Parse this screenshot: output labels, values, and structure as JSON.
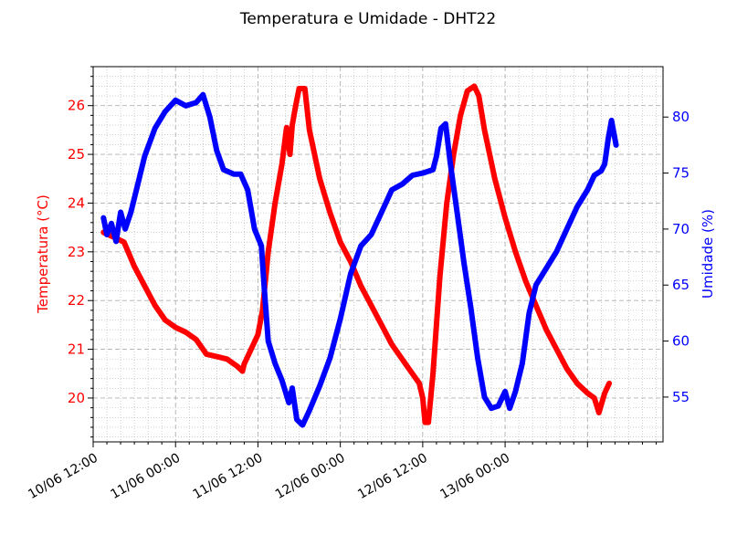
{
  "chart_data": {
    "type": "line",
    "title": "Temperatura e Umidade - DHT22",
    "xlabel": "",
    "x_tick_labels": [
      "10/06 12:00",
      "11/06 00:00",
      "11/06 12:00",
      "12/06 00:00",
      "12/06 12:00",
      "13/06 00:00"
    ],
    "x_range": [
      "2018-06-10 12:00",
      "2018-06-13 23:00"
    ],
    "grid": true,
    "y_left": {
      "label": "Temperatura (°C)",
      "color": "#ff0000",
      "ylim": [
        19.1,
        26.8
      ],
      "ticks": [
        "20",
        "21",
        "22",
        "23",
        "24",
        "25",
        "26"
      ]
    },
    "y_right": {
      "label": "Umidade (%)",
      "color": "#0000ff",
      "ylim": [
        51,
        84.5
      ],
      "ticks": [
        "55",
        "60",
        "65",
        "70",
        "75",
        "80"
      ]
    },
    "series": [
      {
        "axis": "left",
        "color": "#ff0000",
        "points": [
          [
            "2018-06-10 13:30",
            23.4
          ],
          [
            "2018-06-10 15:00",
            23.3
          ],
          [
            "2018-06-10 16:30",
            23.2
          ],
          [
            "2018-06-10 18:00",
            22.7
          ],
          [
            "2018-06-10 19:30",
            22.3
          ],
          [
            "2018-06-10 21:00",
            21.9
          ],
          [
            "2018-06-10 22:30",
            21.6
          ],
          [
            "2018-06-11 00:00",
            21.45
          ],
          [
            "2018-06-11 01:30",
            21.35
          ],
          [
            "2018-06-11 03:00",
            21.2
          ],
          [
            "2018-06-11 04:30",
            20.9
          ],
          [
            "2018-06-11 06:00",
            20.85
          ],
          [
            "2018-06-11 07:30",
            20.8
          ],
          [
            "2018-06-11 09:00",
            20.65
          ],
          [
            "2018-06-11 09:45",
            20.55
          ],
          [
            "2018-06-11 10:00",
            20.7
          ],
          [
            "2018-06-11 11:00",
            21.0
          ],
          [
            "2018-06-11 12:00",
            21.3
          ],
          [
            "2018-06-11 12:40",
            21.8
          ],
          [
            "2018-06-11 13:30",
            23.0
          ],
          [
            "2018-06-11 14:30",
            24.0
          ],
          [
            "2018-06-11 15:30",
            24.8
          ],
          [
            "2018-06-11 16:10",
            25.55
          ],
          [
            "2018-06-11 16:40",
            25.0
          ],
          [
            "2018-06-11 17:00",
            25.6
          ],
          [
            "2018-06-11 17:30",
            26.0
          ],
          [
            "2018-06-11 18:00",
            26.35
          ],
          [
            "2018-06-11 18:50",
            26.35
          ],
          [
            "2018-06-11 19:30",
            25.5
          ],
          [
            "2018-06-11 21:00",
            24.5
          ],
          [
            "2018-06-11 22:30",
            23.8
          ],
          [
            "2018-06-12 00:00",
            23.2
          ],
          [
            "2018-06-12 01:30",
            22.8
          ],
          [
            "2018-06-12 03:00",
            22.3
          ],
          [
            "2018-06-12 04:30",
            21.9
          ],
          [
            "2018-06-12 06:00",
            21.5
          ],
          [
            "2018-06-12 07:30",
            21.1
          ],
          [
            "2018-06-12 09:00",
            20.8
          ],
          [
            "2018-06-12 10:30",
            20.5
          ],
          [
            "2018-06-12 11:30",
            20.3
          ],
          [
            "2018-06-12 12:00",
            20.0
          ],
          [
            "2018-06-12 12:20",
            19.5
          ],
          [
            "2018-06-12 12:50",
            19.5
          ],
          [
            "2018-06-12 13:30",
            20.5
          ],
          [
            "2018-06-12 14:30",
            22.5
          ],
          [
            "2018-06-12 15:30",
            24.0
          ],
          [
            "2018-06-12 16:30",
            25.0
          ],
          [
            "2018-06-12 17:30",
            25.8
          ],
          [
            "2018-06-12 18:30",
            26.3
          ],
          [
            "2018-06-12 19:30",
            26.4
          ],
          [
            "2018-06-12 20:10",
            26.2
          ],
          [
            "2018-06-12 21:00",
            25.5
          ],
          [
            "2018-06-12 22:30",
            24.5
          ],
          [
            "2018-06-13 00:00",
            23.7
          ],
          [
            "2018-06-13 01:30",
            23.0
          ],
          [
            "2018-06-13 03:00",
            22.4
          ],
          [
            "2018-06-13 04:30",
            21.9
          ],
          [
            "2018-06-13 06:00",
            21.4
          ],
          [
            "2018-06-13 07:30",
            21.0
          ],
          [
            "2018-06-13 09:00",
            20.6
          ],
          [
            "2018-06-13 10:30",
            20.3
          ],
          [
            "2018-06-13 12:00",
            20.1
          ],
          [
            "2018-06-13 13:00",
            20.0
          ],
          [
            "2018-06-13 13:40",
            19.7
          ],
          [
            "2018-06-13 14:30",
            20.1
          ],
          [
            "2018-06-13 15:10",
            20.3
          ]
        ]
      },
      {
        "axis": "right",
        "color": "#0000ff",
        "points": [
          [
            "2018-06-10 13:30",
            71.0
          ],
          [
            "2018-06-10 14:00",
            69.5
          ],
          [
            "2018-06-10 14:40",
            70.5
          ],
          [
            "2018-06-10 15:20",
            68.9
          ],
          [
            "2018-06-10 16:00",
            71.5
          ],
          [
            "2018-06-10 16:40",
            70.0
          ],
          [
            "2018-06-10 17:30",
            71.5
          ],
          [
            "2018-06-10 18:30",
            74.0
          ],
          [
            "2018-06-10 19:30",
            76.5
          ],
          [
            "2018-06-10 21:00",
            79.0
          ],
          [
            "2018-06-10 22:30",
            80.5
          ],
          [
            "2018-06-11 00:00",
            81.5
          ],
          [
            "2018-06-11 01:30",
            81.0
          ],
          [
            "2018-06-11 03:00",
            81.3
          ],
          [
            "2018-06-11 04:00",
            82.0
          ],
          [
            "2018-06-11 05:00",
            80.0
          ],
          [
            "2018-06-11 06:00",
            77.0
          ],
          [
            "2018-06-11 07:00",
            75.3
          ],
          [
            "2018-06-11 08:30",
            74.9
          ],
          [
            "2018-06-11 09:30",
            74.9
          ],
          [
            "2018-06-11 10:30",
            73.5
          ],
          [
            "2018-06-11 11:30",
            70.0
          ],
          [
            "2018-06-11 12:30",
            68.5
          ],
          [
            "2018-06-11 13:00",
            64.0
          ],
          [
            "2018-06-11 13:30",
            60.0
          ],
          [
            "2018-06-11 14:30",
            58.0
          ],
          [
            "2018-06-11 15:30",
            56.5
          ],
          [
            "2018-06-11 16:30",
            54.5
          ],
          [
            "2018-06-11 17:00",
            55.8
          ],
          [
            "2018-06-11 17:40",
            53.0
          ],
          [
            "2018-06-11 18:30",
            52.5
          ],
          [
            "2018-06-11 19:30",
            53.8
          ],
          [
            "2018-06-11 21:00",
            56.0
          ],
          [
            "2018-06-11 22:30",
            58.5
          ],
          [
            "2018-06-12 00:00",
            62.0
          ],
          [
            "2018-06-12 01:30",
            66.0
          ],
          [
            "2018-06-12 03:00",
            68.5
          ],
          [
            "2018-06-12 04:30",
            69.5
          ],
          [
            "2018-06-12 06:00",
            71.5
          ],
          [
            "2018-06-12 07:30",
            73.5
          ],
          [
            "2018-06-12 09:00",
            74.0
          ],
          [
            "2018-06-12 10:30",
            74.8
          ],
          [
            "2018-06-12 12:00",
            75.0
          ],
          [
            "2018-06-12 13:00",
            75.2
          ],
          [
            "2018-06-12 13:30",
            75.3
          ],
          [
            "2018-06-12 14:00",
            76.5
          ],
          [
            "2018-06-12 14:40",
            79.0
          ],
          [
            "2018-06-12 15:20",
            79.4
          ],
          [
            "2018-06-12 16:00",
            76.0
          ],
          [
            "2018-06-12 17:00",
            71.5
          ],
          [
            "2018-06-12 18:00",
            67.0
          ],
          [
            "2018-06-12 19:00",
            63.0
          ],
          [
            "2018-06-12 20:00",
            58.5
          ],
          [
            "2018-06-12 21:00",
            55.0
          ],
          [
            "2018-06-12 22:00",
            54.0
          ],
          [
            "2018-06-12 23:00",
            54.2
          ],
          [
            "2018-06-13 00:00",
            55.5
          ],
          [
            "2018-06-13 00:40",
            54.0
          ],
          [
            "2018-06-13 01:30",
            55.5
          ],
          [
            "2018-06-13 02:30",
            58.0
          ],
          [
            "2018-06-13 03:30",
            62.5
          ],
          [
            "2018-06-13 04:30",
            65.0
          ],
          [
            "2018-06-13 06:00",
            66.5
          ],
          [
            "2018-06-13 07:30",
            68.0
          ],
          [
            "2018-06-13 09:00",
            70.0
          ],
          [
            "2018-06-13 10:30",
            72.0
          ],
          [
            "2018-06-13 12:00",
            73.5
          ],
          [
            "2018-06-13 13:00",
            74.8
          ],
          [
            "2018-06-13 14:00",
            75.2
          ],
          [
            "2018-06-13 14:30",
            75.8
          ],
          [
            "2018-06-13 15:00",
            78.0
          ],
          [
            "2018-06-13 15:30",
            79.7
          ],
          [
            "2018-06-13 16:10",
            77.5
          ]
        ]
      }
    ]
  }
}
